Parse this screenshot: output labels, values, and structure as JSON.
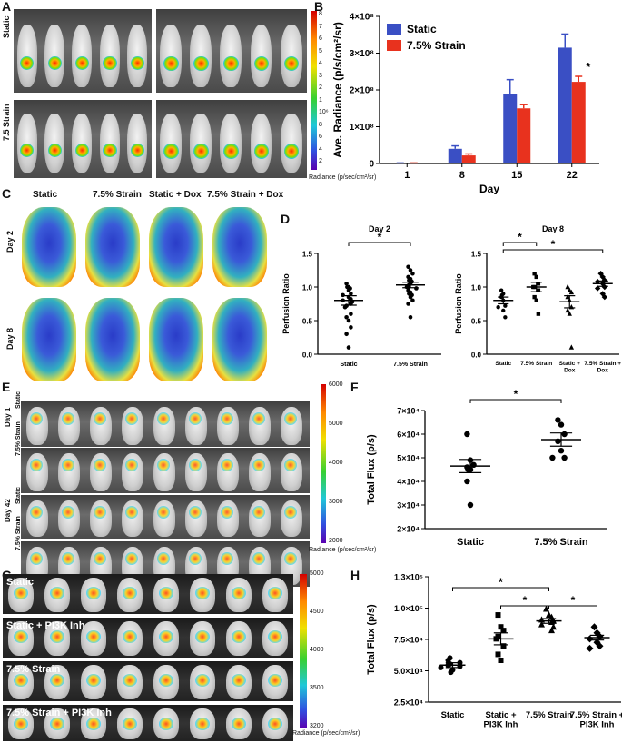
{
  "panels": {
    "A": {
      "letter": "A",
      "row_labels": [
        "Static",
        "7.5 Strain"
      ],
      "colorbar_ticks": [
        "8",
        "7",
        "6",
        "5",
        "4",
        "3",
        "2",
        "1",
        "10⁶",
        "8",
        "6",
        "4",
        "2"
      ],
      "colorbar_title": "Radiance (p/sec/cm²/sr)",
      "colors": [
        "#d40000",
        "#ff8a00",
        "#f0e000",
        "#38d030",
        "#20c8d8",
        "#3050e0",
        "#5a00b0"
      ]
    },
    "C": {
      "letter": "C",
      "column_labels": [
        "Static",
        "7.5% Strain",
        "Static + Dox",
        "7.5% Strain + Dox"
      ],
      "row_labels": [
        "Day 2",
        "Day 8"
      ]
    },
    "E": {
      "letter": "E",
      "day_labels": [
        "Day 1",
        "Day 42"
      ],
      "row_labels": [
        "Static",
        "7.5% Strain",
        "Static",
        "7.5% Strain"
      ],
      "colorbar_ticks": [
        "6000",
        "5000",
        "4000",
        "3000",
        "2000"
      ],
      "colorbar_title": "Radiance (p/sec/cm²/sr)"
    },
    "G": {
      "letter": "G",
      "row_labels": [
        "Static",
        "Static + PI3K Inh",
        "7.5% Strain",
        "7.5% Strain + PI3K Inh"
      ],
      "colorbar_ticks": [
        "5000",
        "4500",
        "4000",
        "3500",
        "3200"
      ],
      "colorbar_title": "Radiance (p/sec/cm²/sr)"
    }
  },
  "chart_data": [
    {
      "id": "B",
      "letter": "B",
      "type": "bar",
      "categories": [
        "1",
        "8",
        "15",
        "22"
      ],
      "series": [
        {
          "name": "Static",
          "color": "#3a4fc4",
          "values": [
            0.01,
            0.4,
            1.9,
            3.15
          ],
          "errors": [
            0.005,
            0.08,
            0.38,
            0.37
          ]
        },
        {
          "name": "7.5% Strain",
          "color": "#e8321e",
          "values": [
            0.01,
            0.22,
            1.5,
            2.22
          ],
          "errors": [
            0.005,
            0.04,
            0.1,
            0.15
          ]
        }
      ],
      "title": "",
      "xlabel": "Day",
      "ylabel": "Ave. Radiance (p/s/cm²/sr)",
      "ylim": [
        0,
        4
      ],
      "yticks": [
        "0",
        "1×10⁸",
        "2×10⁸",
        "3×10⁸",
        "4×10⁸"
      ],
      "legend": "top-left",
      "annotations": [
        "*"
      ]
    },
    {
      "id": "D1",
      "letter": "D",
      "type": "scatter",
      "title": "Day 2",
      "categories": [
        "Static",
        "7.5% Strain"
      ],
      "groups": [
        [
          1.05,
          1.0,
          1.0,
          0.98,
          0.95,
          0.9,
          0.88,
          0.85,
          0.82,
          0.8,
          0.78,
          0.75,
          0.72,
          0.7,
          0.6,
          0.55,
          0.5,
          0.4,
          0.3,
          0.1
        ],
        [
          1.3,
          1.25,
          1.2,
          1.15,
          1.12,
          1.1,
          1.08,
          1.05,
          1.03,
          1.0,
          1.0,
          0.98,
          0.95,
          0.92,
          0.9,
          0.88,
          0.85,
          0.8,
          0.75,
          0.55
        ]
      ],
      "means": [
        0.8,
        1.03
      ],
      "sems": [
        0.07,
        0.04
      ],
      "xlabel": "",
      "ylabel": "Perfusion Ratio",
      "ylim": [
        0,
        1.5
      ],
      "yticks": [
        "0.0",
        "0.5",
        "1.0",
        "1.5"
      ],
      "annotations": [
        "*"
      ]
    },
    {
      "id": "D2",
      "letter": "",
      "type": "scatter",
      "title": "Day 8",
      "categories": [
        "Static",
        "7.5% Strain",
        "Static + Dox",
        "7.5% Strain + Dox"
      ],
      "groups": [
        [
          0.95,
          0.9,
          0.88,
          0.85,
          0.8,
          0.72,
          0.7,
          0.65,
          0.55
        ],
        [
          1.2,
          1.15,
          1.05,
          1.0,
          1.0,
          0.95,
          0.85,
          0.8,
          0.6
        ],
        [
          1.0,
          0.95,
          0.92,
          0.85,
          0.8,
          0.7,
          0.65,
          0.6,
          0.1
        ],
        [
          1.2,
          1.15,
          1.1,
          1.08,
          1.05,
          1.0,
          0.98,
          0.9,
          0.85
        ]
      ],
      "means": [
        0.8,
        1.0,
        0.78,
        1.05
      ],
      "sems": [
        0.05,
        0.07,
        0.09,
        0.04
      ],
      "xlabel": "",
      "ylabel": "Perfusion Ratio",
      "ylim": [
        0,
        1.5
      ],
      "yticks": [
        "0.0",
        "0.5",
        "1.0",
        "1.5"
      ],
      "annotations": [
        "*",
        "*"
      ]
    },
    {
      "id": "F",
      "letter": "F",
      "type": "scatter",
      "title": "",
      "categories": [
        "Static",
        "7.5% Strain"
      ],
      "groups": [
        [
          6.0,
          4.9,
          4.7,
          4.6,
          4.5,
          4.5,
          4.0,
          3.0
        ],
        [
          6.6,
          6.4,
          6.0,
          5.7,
          5.3,
          5.0,
          5.0
        ]
      ],
      "means": [
        4.65,
        5.77
      ],
      "sems": [
        0.28,
        0.28
      ],
      "xlabel": "",
      "ylabel": "Total Flux (p/s)",
      "ylim": [
        2,
        7
      ],
      "yticks": [
        "2×10⁴",
        "3×10⁴",
        "4×10⁴",
        "5×10⁴",
        "6×10⁴",
        "7×10⁴"
      ],
      "annotations": [
        "*"
      ]
    },
    {
      "id": "H",
      "letter": "H",
      "type": "scatter",
      "title": "",
      "categories": [
        "Static",
        "Static + PI3K Inh",
        "7.5% Strain",
        "7.5% Strain + PI3K Inh"
      ],
      "groups": [
        [
          0.62,
          0.6,
          0.58,
          0.57,
          0.56,
          0.55,
          0.54,
          0.52,
          0.5
        ],
        [
          0.98,
          0.88,
          0.85,
          0.8,
          0.78,
          0.72,
          0.65,
          0.6
        ],
        [
          1.03,
          0.98,
          0.96,
          0.94,
          0.93,
          0.92,
          0.9,
          0.88,
          0.85
        ],
        [
          0.88,
          0.83,
          0.8,
          0.78,
          0.75,
          0.72,
          0.7
        ]
      ],
      "markers": [
        "circle",
        "square",
        "triangle",
        "diamond"
      ],
      "means": [
        0.56,
        0.78,
        0.93,
        0.79
      ],
      "sems": [
        0.02,
        0.05,
        0.02,
        0.02
      ],
      "xlabel": "",
      "ylabel": "Total Flux (p/s)",
      "ylim": [
        0.25,
        1.3
      ],
      "yticks": [
        "2.5×10⁴",
        "5.0×10⁴",
        "7.5×10⁴",
        "1.0×10⁵",
        "1.3×10⁵"
      ],
      "annotations": [
        "*",
        "*",
        "*"
      ]
    }
  ]
}
